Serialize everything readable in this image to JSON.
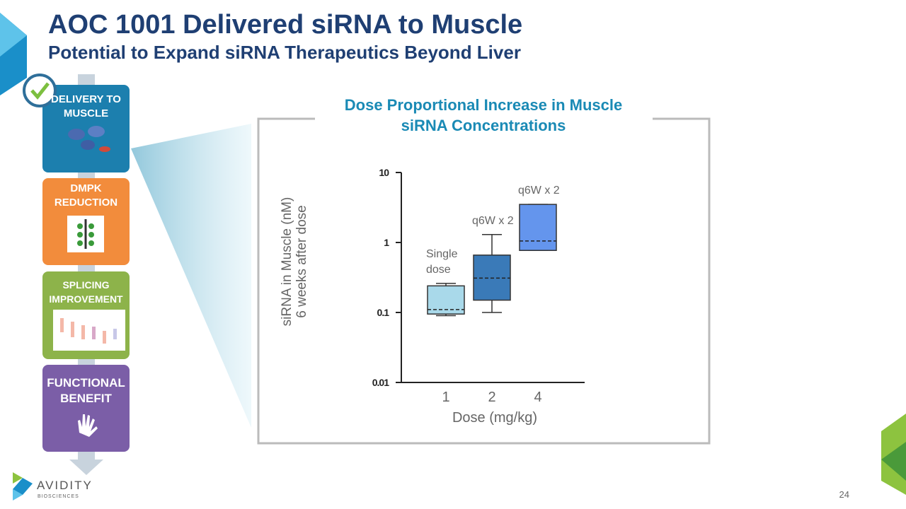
{
  "header": {
    "title": "AOC 1001 Delivered siRNA to Muscle",
    "subtitle": "Potential to Expand siRNA Therapeutics Beyond Liver"
  },
  "steps": [
    "DELIVERY TO MUSCLE",
    "DMPK REDUCTION",
    "SPLICING IMPROVEMENT",
    "FUNCTIONAL BENEFIT"
  ],
  "chart_data": {
    "type": "box",
    "title": "Dose Proportional Increase in Muscle siRNA Concentrations",
    "ylabel": [
      "siRNA in Muscle (nM)",
      "6 weeks after dose"
    ],
    "xlabel": "Dose (mg/kg)",
    "categories": [
      "1",
      "2",
      "4"
    ],
    "boxes": [
      {
        "low": 0.09,
        "q1": 0.095,
        "median": 0.11,
        "q3": 0.24,
        "high": 0.26,
        "color": "#a9d9ea",
        "annotation": "Single dose"
      },
      {
        "low": 0.1,
        "q1": 0.15,
        "median": 0.31,
        "q3": 0.66,
        "high": 1.3,
        "color": "#3a7ab8",
        "annotation": "q6W x 2"
      },
      {
        "low": 0.77,
        "q1": 0.77,
        "median": 1.05,
        "q3": 3.5,
        "high": 3.5,
        "color": "#6495ed",
        "annotation": "q6W x 2"
      }
    ],
    "ylim": [
      0.01,
      10
    ],
    "yticks": [
      0.01,
      0.1,
      1,
      10
    ],
    "log_y": true
  },
  "footer": {
    "logo": "AVIDITY",
    "logo_sub": "BIOSCIENCES",
    "page_number": "24"
  }
}
